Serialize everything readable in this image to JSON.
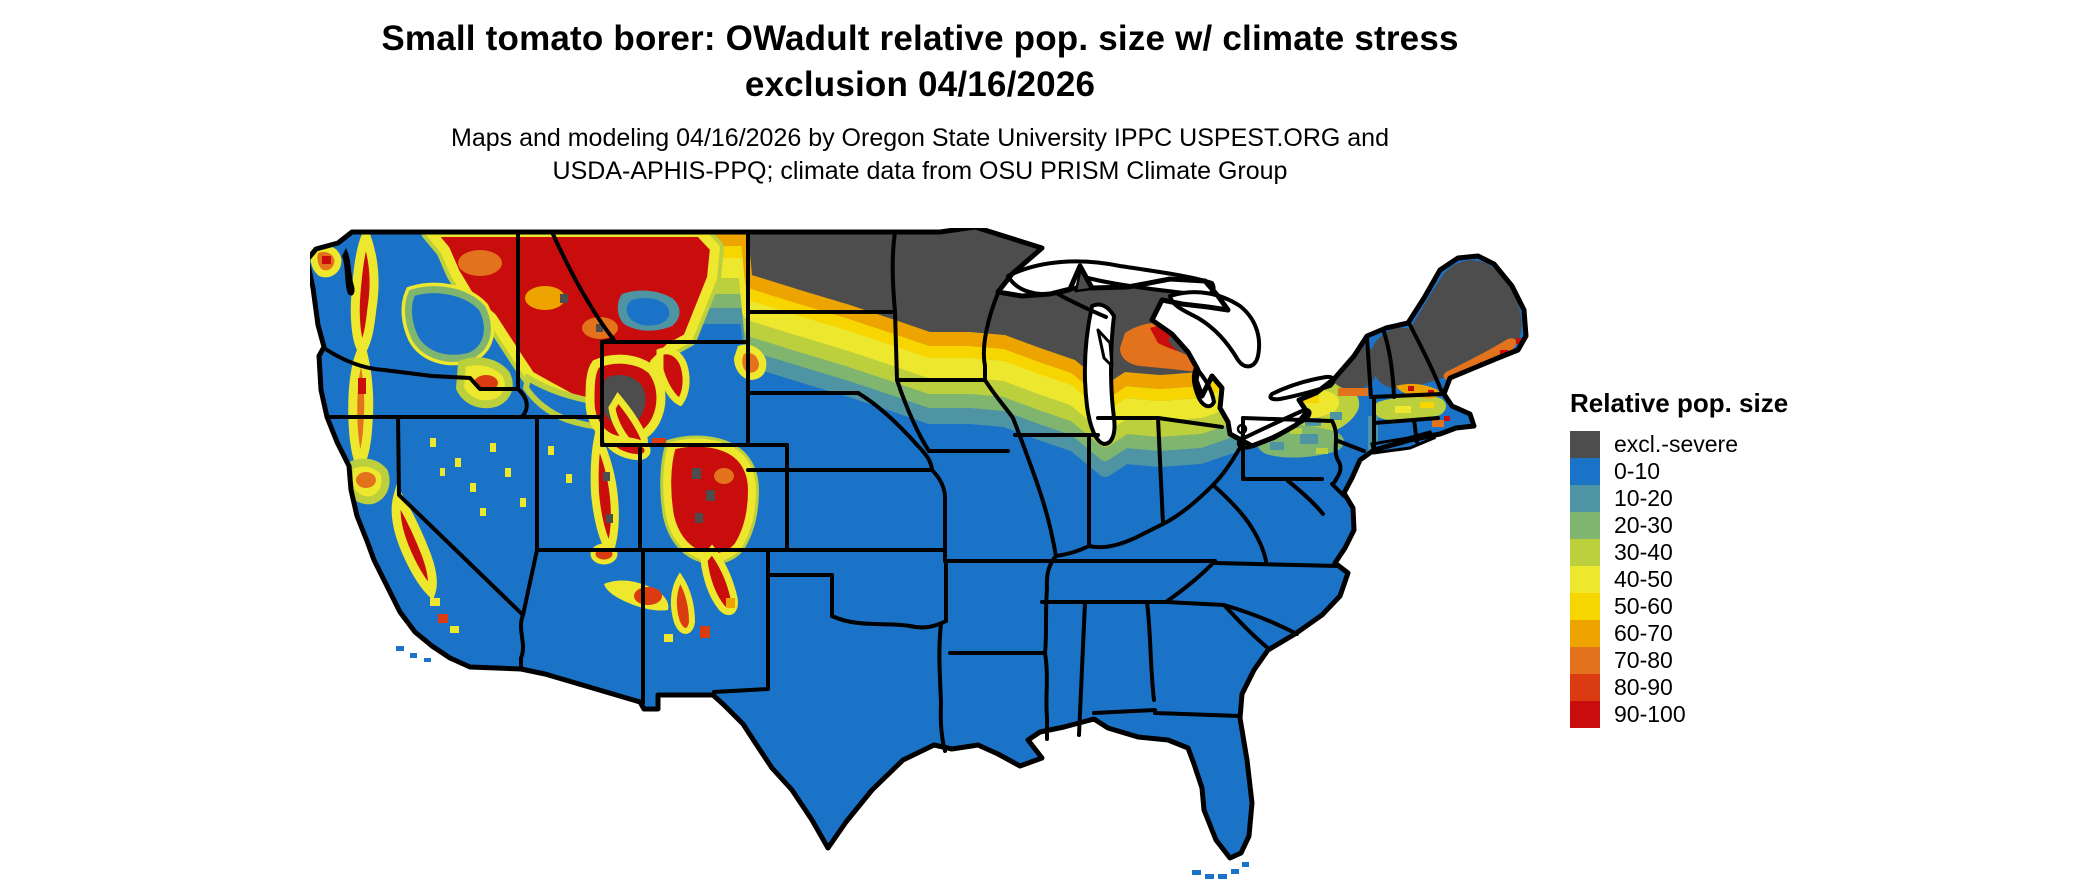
{
  "title": {
    "line1": "Small tomato borer: OWadult relative pop. size w/ climate stress",
    "line2": "exclusion 04/16/2026"
  },
  "subtitle": {
    "line1": "Maps and modeling 04/16/2026 by Oregon State University IPPC USPEST.ORG and",
    "line2": "USDA-APHIS-PPQ; climate data from OSU PRISM Climate Group"
  },
  "legend": {
    "title": "Relative pop. size",
    "items": [
      {
        "label": "excl.-severe",
        "color": "#4D4D4D"
      },
      {
        "label": "0-10",
        "color": "#1B73C8"
      },
      {
        "label": "10-20",
        "color": "#4F94A3"
      },
      {
        "label": "20-30",
        "color": "#7FB56F"
      },
      {
        "label": "30-40",
        "color": "#BCCF3D"
      },
      {
        "label": "40-50",
        "color": "#EDE72E"
      },
      {
        "label": "50-60",
        "color": "#F7D500"
      },
      {
        "label": "60-70",
        "color": "#EDA400"
      },
      {
        "label": "70-80",
        "color": "#E2721C"
      },
      {
        "label": "80-90",
        "color": "#DA3B10"
      },
      {
        "label": "90-100",
        "color": "#C90C0C"
      }
    ]
  },
  "map": {
    "region": "Conterminous United States with state boundaries",
    "style": "raster choropleth of relative population size",
    "dominant_class": "0-10",
    "boundary_color": "#000000",
    "background_color": "#FFFFFF",
    "excluded_severe_areas": "northern Minnesota, North Dakota, northern Wisconsin, Michigan Upper Peninsula, Adirondacks, northern New England and Maine, high Rockies (Yellowstone, Colorado)",
    "high_value_areas": "Cascades, Sierra Nevada, Idaho/Montana Rockies, Colorado Rockies, northern Great Lakes fringe, Maine coast"
  }
}
